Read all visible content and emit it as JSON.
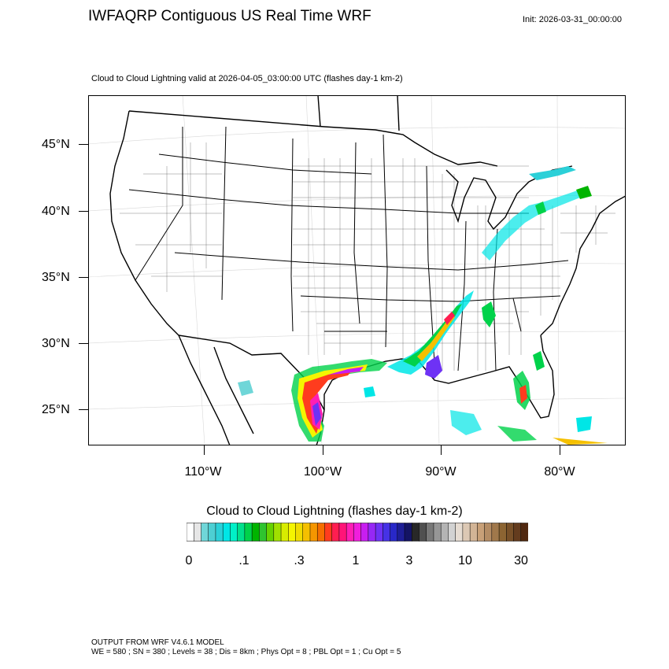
{
  "header": {
    "title": "IWFAQRP Contiguous US Real Time WRF",
    "init": "Init: 2026-03-31_00:00:00"
  },
  "plot": {
    "subtitle": "Cloud to Cloud Lightning valid at 2026-04-05_03:00:00 UTC   (flashes day-1 km-2)",
    "lat_labels": [
      "45°N",
      "40°N",
      "35°N",
      "30°N",
      "25°N"
    ],
    "lon_labels": [
      "110°W",
      "100°W",
      "90°W",
      "80°W"
    ]
  },
  "colorbar": {
    "title": "Cloud to Cloud Lightning  (flashes day-1 km-2)",
    "tick_labels": [
      "0",
      ".1",
      ".3",
      "1",
      "3",
      "10",
      "30"
    ],
    "colors": [
      "#ffffff",
      "#e6e6e6",
      "#6fd6d8",
      "#4dcfd3",
      "#2bd0d8",
      "#00e6e6",
      "#00f0c8",
      "#00e08c",
      "#00d24a",
      "#00b400",
      "#2fc42f",
      "#66d200",
      "#a0e000",
      "#d8ec00",
      "#f5f500",
      "#f0dc00",
      "#f5c000",
      "#f59600",
      "#f56e00",
      "#ff3c1e",
      "#ff1e50",
      "#ff1478",
      "#ff1eb4",
      "#f01edc",
      "#c81ef0",
      "#9628f5",
      "#6e32f5",
      "#4632e6",
      "#2828c8",
      "#1e1e96",
      "#141464",
      "#282828",
      "#505050",
      "#787878",
      "#969696",
      "#b4b4b4",
      "#d2d2d2",
      "#e6dcd2",
      "#dcc8b4",
      "#d2b496",
      "#c8a078",
      "#b48c64",
      "#a0784b",
      "#8c6432",
      "#785028",
      "#643c1e",
      "#50280f"
    ]
  },
  "footer": {
    "line1": "OUTPUT FROM WRF V4.6.1 MODEL",
    "line2": "WE = 580 ; SN = 380 ; Levels = 38 ; Dis = 8km ; Phys Opt = 8 ; PBL Opt = 1 ; Cu Opt = 5"
  }
}
